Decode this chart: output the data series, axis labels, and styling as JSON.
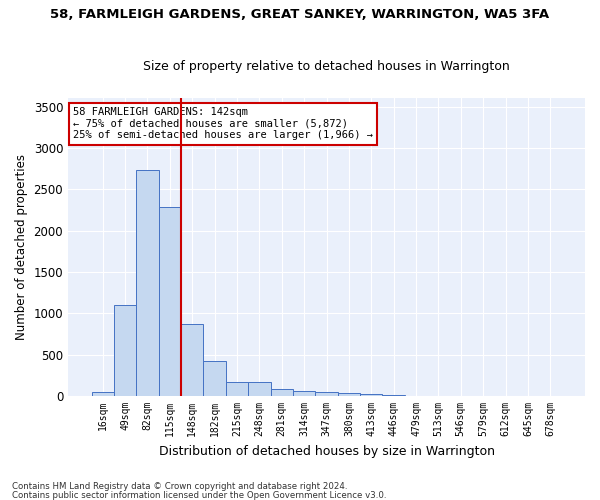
{
  "title": "58, FARMLEIGH GARDENS, GREAT SANKEY, WARRINGTON, WA5 3FA",
  "subtitle": "Size of property relative to detached houses in Warrington",
  "xlabel": "Distribution of detached houses by size in Warrington",
  "ylabel": "Number of detached properties",
  "categories": [
    "16sqm",
    "49sqm",
    "82sqm",
    "115sqm",
    "148sqm",
    "182sqm",
    "215sqm",
    "248sqm",
    "281sqm",
    "314sqm",
    "347sqm",
    "380sqm",
    "413sqm",
    "446sqm",
    "479sqm",
    "513sqm",
    "546sqm",
    "579sqm",
    "612sqm",
    "645sqm",
    "678sqm"
  ],
  "values": [
    50,
    1100,
    2730,
    2285,
    870,
    425,
    170,
    165,
    90,
    60,
    50,
    35,
    25,
    15,
    5,
    5,
    2,
    2,
    1,
    1,
    1
  ],
  "bar_color": "#c5d8f0",
  "bar_edge_color": "#4472c4",
  "background_color": "#eaf0fb",
  "grid_color": "#ffffff",
  "vline_x_index": 3.5,
  "vline_color": "#cc0000",
  "annotation_title": "58 FARMLEIGH GARDENS: 142sqm",
  "annotation_line1": "← 75% of detached houses are smaller (5,872)",
  "annotation_line2": "25% of semi-detached houses are larger (1,966) →",
  "annotation_box_color": "#cc0000",
  "ylim": [
    0,
    3600
  ],
  "yticks": [
    0,
    500,
    1000,
    1500,
    2000,
    2500,
    3000,
    3500
  ],
  "footer1": "Contains HM Land Registry data © Crown copyright and database right 2024.",
  "footer2": "Contains public sector information licensed under the Open Government Licence v3.0."
}
